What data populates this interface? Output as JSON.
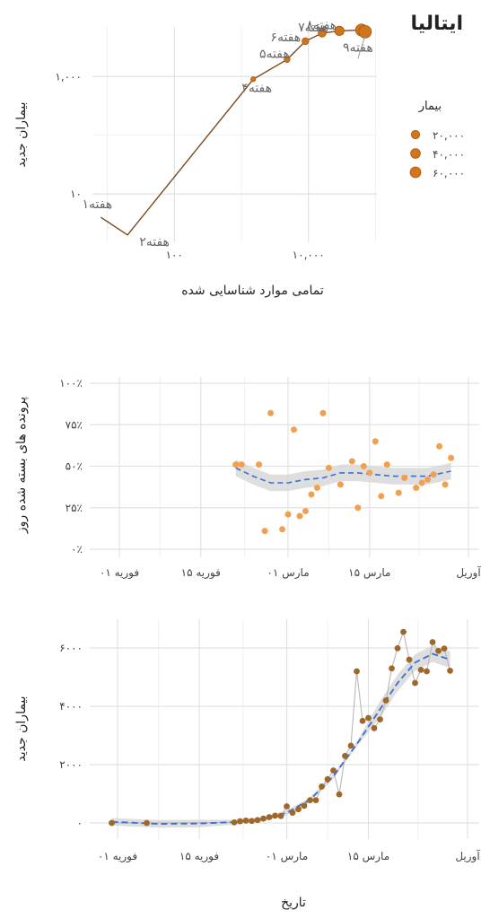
{
  "title": "ایتالیا",
  "chart_data": [
    {
      "type": "line",
      "scale": "log-log",
      "xlabel": "تمامی موارد شناسایی شده",
      "ylabel": "بیماران جدید",
      "xticks": [
        {
          "value": 100,
          "label": "۱۰۰"
        },
        {
          "value": 10000,
          "label": "۱۰,۰۰۰"
        }
      ],
      "yticks": [
        {
          "value": 10,
          "label": "۱۰"
        },
        {
          "value": 1000,
          "label": "۱,۰۰۰"
        }
      ],
      "xlim": [
        6,
        105000
      ],
      "ylim": [
        1.5,
        7000
      ],
      "x": [
        8,
        20,
        1500,
        4800,
        9000,
        16000,
        29000,
        62000,
        70000
      ],
      "y": [
        4,
        2,
        900,
        1950,
        4000,
        5500,
        6000,
        6200,
        5800
      ],
      "week_labels": [
        {
          "text": "هفته۱",
          "x": 8,
          "y": 4
        },
        {
          "text": "هفته۲",
          "x": 20,
          "y": 2
        },
        {
          "text": "هفته۴",
          "x": 1500,
          "y": 900
        },
        {
          "text": "هفته۵",
          "x": 4800,
          "y": 1950
        },
        {
          "text": "هفته۶",
          "x": 9000,
          "y": 4000
        },
        {
          "text": "هفته۷",
          "x": 16000,
          "y": 5500
        },
        {
          "text": "هفته۸",
          "x": 29000,
          "y": 6000
        },
        {
          "text": "هفته۹",
          "x": 70000,
          "y": 5800
        }
      ],
      "legend": {
        "title": "بیمار",
        "position": "right",
        "items": [
          {
            "label": "۲۰,۰۰۰",
            "value": 20000
          },
          {
            "label": "۴۰,۰۰۰",
            "value": 40000
          },
          {
            "label": "۶۰,۰۰۰",
            "value": 60000
          }
        ]
      },
      "colors": {
        "line": "#7a4a1e",
        "point": "#d2741a"
      }
    },
    {
      "type": "scatter",
      "ylabel": "پرونده های بسته شده روز",
      "x_dates": [
        "2020-02-01",
        "2020-02-15",
        "2020-03-01",
        "2020-03-15",
        "2020-04-01"
      ],
      "xticks": [
        "۰۱ فوریه",
        "۱۵ فوریه",
        "۰۱ مارس",
        "۱۵ مارس",
        "آوریل"
      ],
      "yticks": [
        "۰٪",
        "۲۵٪",
        "۵۰٪",
        "۷۵٪",
        "۱۰۰٪"
      ],
      "ylim": [
        0,
        100
      ],
      "points": [
        {
          "date": "2020-02-21",
          "y": 51
        },
        {
          "date": "2020-02-22",
          "y": 51
        },
        {
          "date": "2020-02-25",
          "y": 51
        },
        {
          "date": "2020-02-26",
          "y": 11
        },
        {
          "date": "2020-02-27",
          "y": 82
        },
        {
          "date": "2020-02-29",
          "y": 12
        },
        {
          "date": "2020-03-01",
          "y": 21
        },
        {
          "date": "2020-03-02",
          "y": 72
        },
        {
          "date": "2020-03-03",
          "y": 20
        },
        {
          "date": "2020-03-04",
          "y": 23
        },
        {
          "date": "2020-03-05",
          "y": 33
        },
        {
          "date": "2020-03-06",
          "y": 37
        },
        {
          "date": "2020-03-07",
          "y": 82
        },
        {
          "date": "2020-03-08",
          "y": 49
        },
        {
          "date": "2020-03-10",
          "y": 39
        },
        {
          "date": "2020-03-12",
          "y": 53
        },
        {
          "date": "2020-03-13",
          "y": 25
        },
        {
          "date": "2020-03-14",
          "y": 50
        },
        {
          "date": "2020-03-15",
          "y": 46
        },
        {
          "date": "2020-03-16",
          "y": 65
        },
        {
          "date": "2020-03-17",
          "y": 32
        },
        {
          "date": "2020-03-18",
          "y": 51
        },
        {
          "date": "2020-03-20",
          "y": 34
        },
        {
          "date": "2020-03-21",
          "y": 43
        },
        {
          "date": "2020-03-23",
          "y": 37
        },
        {
          "date": "2020-03-24",
          "y": 40
        },
        {
          "date": "2020-03-25",
          "y": 42
        },
        {
          "date": "2020-03-26",
          "y": 45
        },
        {
          "date": "2020-03-27",
          "y": 62
        },
        {
          "date": "2020-03-28",
          "y": 39
        },
        {
          "date": "2020-03-29",
          "y": 55
        }
      ],
      "smooth": [
        {
          "date": "2020-02-21",
          "y": 49
        },
        {
          "date": "2020-02-24",
          "y": 44
        },
        {
          "date": "2020-02-27",
          "y": 40
        },
        {
          "date": "2020-03-01",
          "y": 40
        },
        {
          "date": "2020-03-04",
          "y": 42
        },
        {
          "date": "2020-03-07",
          "y": 43
        },
        {
          "date": "2020-03-10",
          "y": 46
        },
        {
          "date": "2020-03-13",
          "y": 46
        },
        {
          "date": "2020-03-16",
          "y": 45
        },
        {
          "date": "2020-03-19",
          "y": 44
        },
        {
          "date": "2020-03-22",
          "y": 44
        },
        {
          "date": "2020-03-25",
          "y": 44
        },
        {
          "date": "2020-03-29",
          "y": 47
        }
      ],
      "colors": {
        "point": "#f0a050",
        "smooth": "#3a6fd8",
        "band": "#d6d6d6"
      }
    },
    {
      "type": "line",
      "xlabel": "تاریخ",
      "ylabel": "بیماران جدید",
      "x_dates": [
        "2020-02-01",
        "2020-02-15",
        "2020-03-01",
        "2020-03-15",
        "2020-04-01"
      ],
      "xticks": [
        "۰۱ فوریه",
        "۱۵ فوریه",
        "۰۱ مارس",
        "۱۵ مارس",
        "آوریل"
      ],
      "yticks": [
        {
          "value": 0,
          "label": "۰"
        },
        {
          "value": 2000,
          "label": "۲۰۰۰"
        },
        {
          "value": 4000,
          "label": "۴۰۰۰"
        },
        {
          "value": 6000,
          "label": "۶۰۰۰"
        }
      ],
      "ylim": [
        -300,
        6800
      ],
      "points": [
        {
          "date": "2020-01-31",
          "y": 2
        },
        {
          "date": "2020-02-06",
          "y": 1
        },
        {
          "date": "2020-02-21",
          "y": 20
        },
        {
          "date": "2020-02-22",
          "y": 60
        },
        {
          "date": "2020-02-23",
          "y": 80
        },
        {
          "date": "2020-02-24",
          "y": 70
        },
        {
          "date": "2020-02-25",
          "y": 100
        },
        {
          "date": "2020-02-26",
          "y": 150
        },
        {
          "date": "2020-02-27",
          "y": 200
        },
        {
          "date": "2020-02-28",
          "y": 250
        },
        {
          "date": "2020-02-29",
          "y": 240
        },
        {
          "date": "2020-03-01",
          "y": 570
        },
        {
          "date": "2020-03-02",
          "y": 350
        },
        {
          "date": "2020-03-03",
          "y": 470
        },
        {
          "date": "2020-03-04",
          "y": 590
        },
        {
          "date": "2020-03-05",
          "y": 780
        },
        {
          "date": "2020-03-06",
          "y": 780
        },
        {
          "date": "2020-03-07",
          "y": 1250
        },
        {
          "date": "2020-03-08",
          "y": 1500
        },
        {
          "date": "2020-03-09",
          "y": 1800
        },
        {
          "date": "2020-03-10",
          "y": 980
        },
        {
          "date": "2020-03-11",
          "y": 2300
        },
        {
          "date": "2020-03-12",
          "y": 2650
        },
        {
          "date": "2020-03-13",
          "y": 5200
        },
        {
          "date": "2020-03-14",
          "y": 3500
        },
        {
          "date": "2020-03-15",
          "y": 3600
        },
        {
          "date": "2020-03-16",
          "y": 3250
        },
        {
          "date": "2020-03-17",
          "y": 3550
        },
        {
          "date": "2020-03-18",
          "y": 4200
        },
        {
          "date": "2020-03-19",
          "y": 5300
        },
        {
          "date": "2020-03-20",
          "y": 5990
        },
        {
          "date": "2020-03-21",
          "y": 6550
        },
        {
          "date": "2020-03-22",
          "y": 5600
        },
        {
          "date": "2020-03-23",
          "y": 4800
        },
        {
          "date": "2020-03-24",
          "y": 5250
        },
        {
          "date": "2020-03-25",
          "y": 5200
        },
        {
          "date": "2020-03-26",
          "y": 6200
        },
        {
          "date": "2020-03-27",
          "y": 5900
        },
        {
          "date": "2020-03-28",
          "y": 5980
        },
        {
          "date": "2020-03-29",
          "y": 5220
        }
      ],
      "smooth": [
        {
          "date": "2020-01-31",
          "y": 40
        },
        {
          "date": "2020-02-08",
          "y": -30
        },
        {
          "date": "2020-02-15",
          "y": -20
        },
        {
          "date": "2020-02-21",
          "y": 30
        },
        {
          "date": "2020-02-26",
          "y": 130
        },
        {
          "date": "2020-03-01",
          "y": 350
        },
        {
          "date": "2020-03-05",
          "y": 800
        },
        {
          "date": "2020-03-09",
          "y": 1600
        },
        {
          "date": "2020-03-13",
          "y": 2700
        },
        {
          "date": "2020-03-17",
          "y": 3900
        },
        {
          "date": "2020-03-20",
          "y": 4800
        },
        {
          "date": "2020-03-23",
          "y": 5500
        },
        {
          "date": "2020-03-26",
          "y": 5800
        },
        {
          "date": "2020-03-29",
          "y": 5600
        }
      ],
      "colors": {
        "point": "#a0672a",
        "line": "#b8b8b8",
        "smooth": "#3a6fd8",
        "band": "#d6d6d6"
      }
    }
  ]
}
